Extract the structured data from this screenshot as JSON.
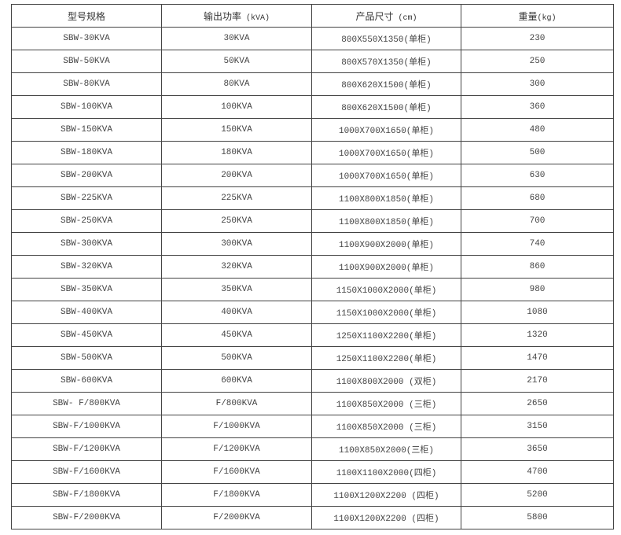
{
  "headers": [
    {
      "label": "型号规格",
      "unit": ""
    },
    {
      "label": "输出功率",
      "unit": " (kVA)"
    },
    {
      "label": "产品尺寸",
      "unit": " (cm)"
    },
    {
      "label": "重量",
      "unit": "(kg)"
    }
  ],
  "rows": [
    [
      "SBW-30KVA",
      "30KVA",
      "800X550X1350(单柜)",
      "230"
    ],
    [
      "SBW-50KVA",
      "50KVA",
      "800X570X1350(单柜)",
      "250"
    ],
    [
      "SBW-80KVA",
      "80KVA",
      "800X620X1500(单柜)",
      "300"
    ],
    [
      "SBW-100KVA",
      "100KVA",
      "800X620X1500(单柜)",
      "360"
    ],
    [
      "SBW-150KVA",
      "150KVA",
      "1000X700X1650(单柜)",
      "480"
    ],
    [
      "SBW-180KVA",
      "180KVA",
      "1000X700X1650(单柜)",
      "500"
    ],
    [
      "SBW-200KVA",
      "200KVA",
      "1000X700X1650(单柜)",
      "630"
    ],
    [
      "SBW-225KVA",
      "225KVA",
      "1100X800X1850(单柜)",
      "680"
    ],
    [
      "SBW-250KVA",
      "250KVA",
      "1100X800X1850(单柜)",
      "700"
    ],
    [
      "SBW-300KVA",
      "300KVA",
      "1100X900X2000(单柜)",
      "740"
    ],
    [
      "SBW-320KVA",
      "320KVA",
      "1100X900X2000(单柜)",
      "860"
    ],
    [
      "SBW-350KVA",
      "350KVA",
      "1150X1000X2000(单柜)",
      "980"
    ],
    [
      "SBW-400KVA",
      "400KVA",
      "1150X1000X2000(单柜)",
      "1080"
    ],
    [
      "SBW-450KVA",
      "450KVA",
      "1250X1100X2200(单柜)",
      "1320"
    ],
    [
      "SBW-500KVA",
      "500KVA",
      "1250X1100X2200(单柜)",
      "1470"
    ],
    [
      "SBW-600KVA",
      "600KVA",
      "1100X800X2000 (双柜)",
      "2170"
    ],
    [
      "SBW- F/800KVA",
      "F/800KVA",
      "1100X850X2000 (三柜)",
      "2650"
    ],
    [
      "SBW-F/1000KVA",
      "F/1000KVA",
      "1100X850X2000 (三柜)",
      "3150"
    ],
    [
      "SBW-F/1200KVA",
      "F/1200KVA",
      "1100X850X2000(三柜)",
      "3650"
    ],
    [
      "SBW-F/1600KVA",
      "F/1600KVA",
      "1100X1100X2000(四柜)",
      "4700"
    ],
    [
      "SBW-F/1800KVA",
      "F/1800KVA",
      "1100X1200X2200 (四柜)",
      "5200"
    ],
    [
      "SBW-F/2000KVA",
      "F/2000KVA",
      "1100X1200X2200 (四柜)",
      "5800"
    ]
  ]
}
